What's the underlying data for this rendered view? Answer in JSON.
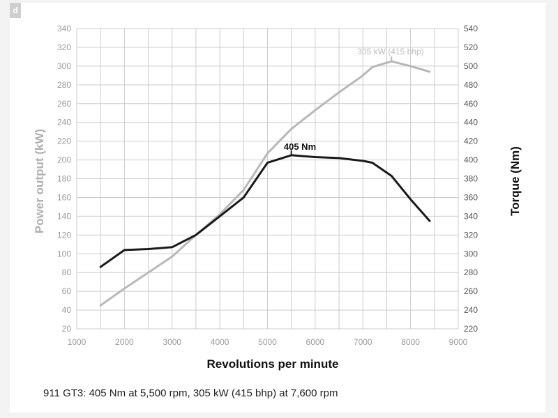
{
  "corner_mark": "d",
  "caption": "911 GT3: 405 Nm at 5,500 rpm, 305 kW (415 bhp) at 7,600 rpm",
  "colors": {
    "power_line": "#b8b8b8",
    "torque_line": "#1a1a1a",
    "grid": "#cccccc",
    "tick_text": "#9a9a9a",
    "power_label": "#bdbdbd",
    "torque_label": "#111111"
  },
  "chart_data": {
    "type": "line",
    "title": "",
    "xlabel": "Revolutions per minute",
    "ylabel_left": "Power output (kW)",
    "ylabel_right": "Torque (Nm)",
    "xlim": [
      1000,
      9000
    ],
    "ylim_left": [
      20,
      340
    ],
    "ylim_right": [
      220,
      540
    ],
    "x_ticks": [
      1000,
      2000,
      3000,
      4000,
      5000,
      6000,
      7000,
      8000,
      9000
    ],
    "x_minor_step": 500,
    "y_left_ticks": [
      20,
      40,
      60,
      80,
      100,
      120,
      140,
      160,
      180,
      200,
      220,
      240,
      260,
      280,
      300,
      320,
      340
    ],
    "y_right_ticks": [
      220,
      240,
      260,
      280,
      300,
      320,
      340,
      360,
      380,
      400,
      420,
      440,
      460,
      480,
      500,
      520,
      540
    ],
    "series": [
      {
        "name": "Power output (kW)",
        "axis": "left",
        "x": [
          1500,
          2000,
          2500,
          3000,
          3500,
          4000,
          4500,
          5000,
          5500,
          6000,
          6500,
          7000,
          7200,
          7600,
          8000,
          8400
        ],
        "values": [
          45,
          63,
          80,
          97,
          120,
          142,
          168,
          207,
          233,
          253,
          272,
          290,
          299,
          305,
          300,
          294
        ]
      },
      {
        "name": "Torque (Nm)",
        "axis": "right",
        "x": [
          1500,
          2000,
          2500,
          3000,
          3500,
          4000,
          4500,
          5000,
          5500,
          6000,
          6500,
          7000,
          7200,
          7600,
          8000,
          8400
        ],
        "values": [
          286,
          304,
          305,
          307,
          320,
          340,
          360,
          397,
          405,
          403,
          402,
          399,
          397,
          383,
          358,
          335
        ]
      }
    ],
    "annotations": [
      {
        "text": "305 kW (415 bhp)",
        "series": "Power output (kW)",
        "x": 7600,
        "y": 305
      },
      {
        "text": "405 Nm",
        "series": "Torque (Nm)",
        "x": 5500,
        "y": 405
      }
    ]
  }
}
